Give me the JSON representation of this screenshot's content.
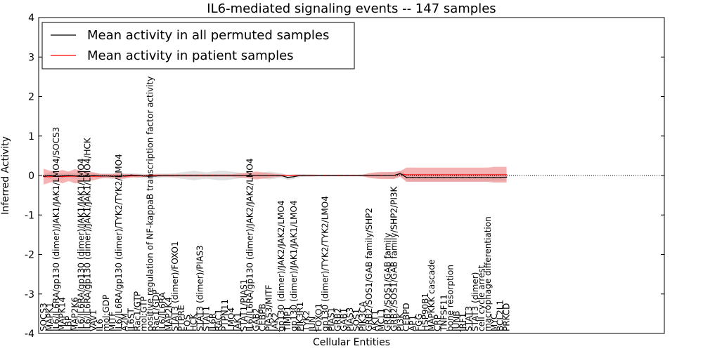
{
  "chart_data": {
    "type": "line",
    "title": "IL6-mediated signaling events -- 147 samples",
    "xlabel": "Cellular Entities",
    "ylabel": "Inferred Activity",
    "ylim": [
      -4,
      4
    ],
    "yticks": [
      -4,
      -3,
      -2,
      -1,
      0,
      1,
      2,
      3,
      4
    ],
    "grid": false,
    "legend_position": "top-left",
    "colors": {
      "permuted": "#000000",
      "patient": "#ff0000",
      "permuted_band": "#c8c8c8",
      "patient_band": "#f08080"
    },
    "entities": [
      "SOCS3",
      "MAPK1",
      "IL6/IL6RA/gp130 (dimer)/JAK1/JAK1/LMO4/SOCS3",
      "MAPK14",
      "LBP",
      "MAP2K6",
      "IL6/IL6RA/gp130 (dimer)/JAK1/JAK1/LMO4",
      "IL6/IL6RA/gp130 (dimer)/JAK1/JAK1/LMO4/HCK",
      "VAV1",
      "IL6",
      "mol:GDP",
      "MITF",
      "IL6/IL6RA/gp130 (dimer)/TYK2/TYK2/LMO4",
      "A2M",
      "IL6ST",
      "Rac1/GTP",
      "mol:GTP",
      "positive regulation of NF-kappaB transcription factor activity",
      "Rac1/GDP",
      "IL6/IL6RA",
      "MAP2K4",
      "STAT3 (dimer)/FOXO1",
      "PTPRE",
      "FOS",
      "HCK",
      "STAT3 (dimer)/PIAS3",
      "STAT1",
      "IL6R",
      "RAC1",
      "PTPN11",
      "LMO4",
      "JAK1",
      "STAT1/PIAS1",
      "IL6/IL6RA/gp130 (dimer)/JAK2/JAK2/LMO4",
      "GAB2",
      "CEBPB",
      "PIAS3/MITF",
      "JAK2",
      "gp130 (dimer)/JAK2/JAK2/LMO4",
      "TIMP1",
      "gp130 (dimer)/JAK1/JAK1/LMO4",
      "PIK3R1",
      "TYK2",
      "JUN",
      "FOXO1",
      "gp130 (dimer)/TYK2/TYK2/LMO4",
      "PIAS1",
      "GRB2",
      "GAB1",
      "PIAS3",
      "SOS1",
      "PIK3CA",
      "GRB2/SOS1/GAB family/SHP2",
      "AKT1",
      "MCL1",
      "GRB2/SOS1/GAB family",
      "GRB2/SOS1/GAB family/SHP2/PI3K",
      "PI3K",
      "CEBPD",
      "AP1",
      "FGG",
      "HSP90B1",
      "MAPKKK cascade",
      "CRP",
      "TNFSF11",
      "bone resorption",
      "JUNB",
      "IRF1",
      "STAT3",
      "STAT3 (dimer)",
      "cell cycle arrest",
      "macrophage differentiation",
      "MYC",
      "BCL2L1",
      "PRKCD"
    ],
    "series": [
      {
        "name": "Mean activity in all permuted samples",
        "values": [
          -0.02,
          0.0,
          -0.02,
          -0.01,
          0.0,
          -0.01,
          -0.02,
          -0.01,
          0.0,
          -0.01,
          -0.01,
          -0.02,
          -0.01,
          -0.01,
          0.01,
          0.0,
          -0.01,
          -0.02,
          -0.01,
          0.0,
          0.0,
          0.0,
          0.0,
          0.0,
          0.0,
          0.0,
          0.0,
          0.0,
          0.0,
          0.0,
          0.0,
          0.0,
          0.0,
          0.0,
          0.0,
          0.0,
          0.0,
          0.0,
          0.0,
          -0.05,
          -0.03,
          0.0,
          0.0,
          0.0,
          0.0,
          0.0,
          0.0,
          0.0,
          0.0,
          0.0,
          0.0,
          0.0,
          0.0,
          0.0,
          0.0,
          0.0,
          0.0,
          0.05,
          -0.05,
          -0.05,
          -0.05,
          -0.05,
          -0.05,
          -0.05,
          -0.05,
          -0.05,
          -0.05,
          -0.05,
          -0.05,
          -0.05,
          -0.05,
          -0.05,
          -0.05,
          -0.05,
          -0.04
        ],
        "band": [
          0.05,
          0.08,
          0.1,
          0.06,
          0.06,
          0.07,
          0.08,
          0.06,
          0.06,
          0.06,
          0.06,
          0.07,
          0.06,
          0.06,
          0.05,
          0.05,
          0.05,
          0.06,
          0.06,
          0.05,
          0.05,
          0.06,
          0.08,
          0.1,
          0.12,
          0.1,
          0.08,
          0.1,
          0.12,
          0.12,
          0.1,
          0.08,
          0.06,
          0.06,
          0.05,
          0.08,
          0.1,
          0.08,
          0.06,
          0.06,
          0.06,
          0.04,
          0.03,
          0.03,
          0.02,
          0.02,
          0.02,
          0.02,
          0.02,
          0.02,
          0.02,
          0.03,
          0.04,
          0.05,
          0.06,
          0.07,
          0.08,
          0.07,
          0.09,
          0.1,
          0.1,
          0.1,
          0.1,
          0.1,
          0.1,
          0.1,
          0.1,
          0.1,
          0.1,
          0.1,
          0.1,
          0.1,
          0.1,
          0.1,
          0.1
        ]
      },
      {
        "name": "Mean activity in patient samples",
        "values": [
          -0.03,
          -0.03,
          -0.02,
          -0.03,
          -0.02,
          -0.02,
          -0.02,
          -0.02,
          -0.02,
          -0.02,
          -0.01,
          -0.01,
          -0.01,
          -0.02,
          -0.01,
          -0.01,
          -0.01,
          0.0,
          0.0,
          0.0,
          0.0,
          0.0,
          0.0,
          0.0,
          0.0,
          0.0,
          0.0,
          0.0,
          0.0,
          0.0,
          0.0,
          0.0,
          0.0,
          0.0,
          0.0,
          0.0,
          0.0,
          0.0,
          0.0,
          0.0,
          0.0,
          0.0,
          0.0,
          0.0,
          0.0,
          0.0,
          0.0,
          0.0,
          0.0,
          0.0,
          0.0,
          0.0,
          0.0,
          0.0,
          0.0,
          0.0,
          0.0,
          0.04,
          0.02,
          0.02,
          0.02,
          0.02,
          0.02,
          0.02,
          0.02,
          0.02,
          0.02,
          0.02,
          0.02,
          0.02,
          0.02,
          0.02,
          0.02,
          0.02,
          0.02
        ],
        "band": [
          0.2,
          0.15,
          0.12,
          0.17,
          0.12,
          0.18,
          0.15,
          0.12,
          0.1,
          0.06,
          0.05,
          0.05,
          0.08,
          0.06,
          0.04,
          0.04,
          0.03,
          0.03,
          0.03,
          0.03,
          0.03,
          0.03,
          0.03,
          0.03,
          0.03,
          0.03,
          0.03,
          0.03,
          0.03,
          0.03,
          0.03,
          0.05,
          0.06,
          0.08,
          0.1,
          0.08,
          0.06,
          0.04,
          0.03,
          0.02,
          0.02,
          0.02,
          0.02,
          0.02,
          0.02,
          0.02,
          0.02,
          0.02,
          0.02,
          0.02,
          0.02,
          0.02,
          0.06,
          0.08,
          0.09,
          0.09,
          0.09,
          0.07,
          0.18,
          0.18,
          0.18,
          0.18,
          0.18,
          0.18,
          0.18,
          0.18,
          0.18,
          0.18,
          0.18,
          0.18,
          0.18,
          0.18,
          0.2,
          0.2,
          0.2
        ]
      }
    ]
  }
}
